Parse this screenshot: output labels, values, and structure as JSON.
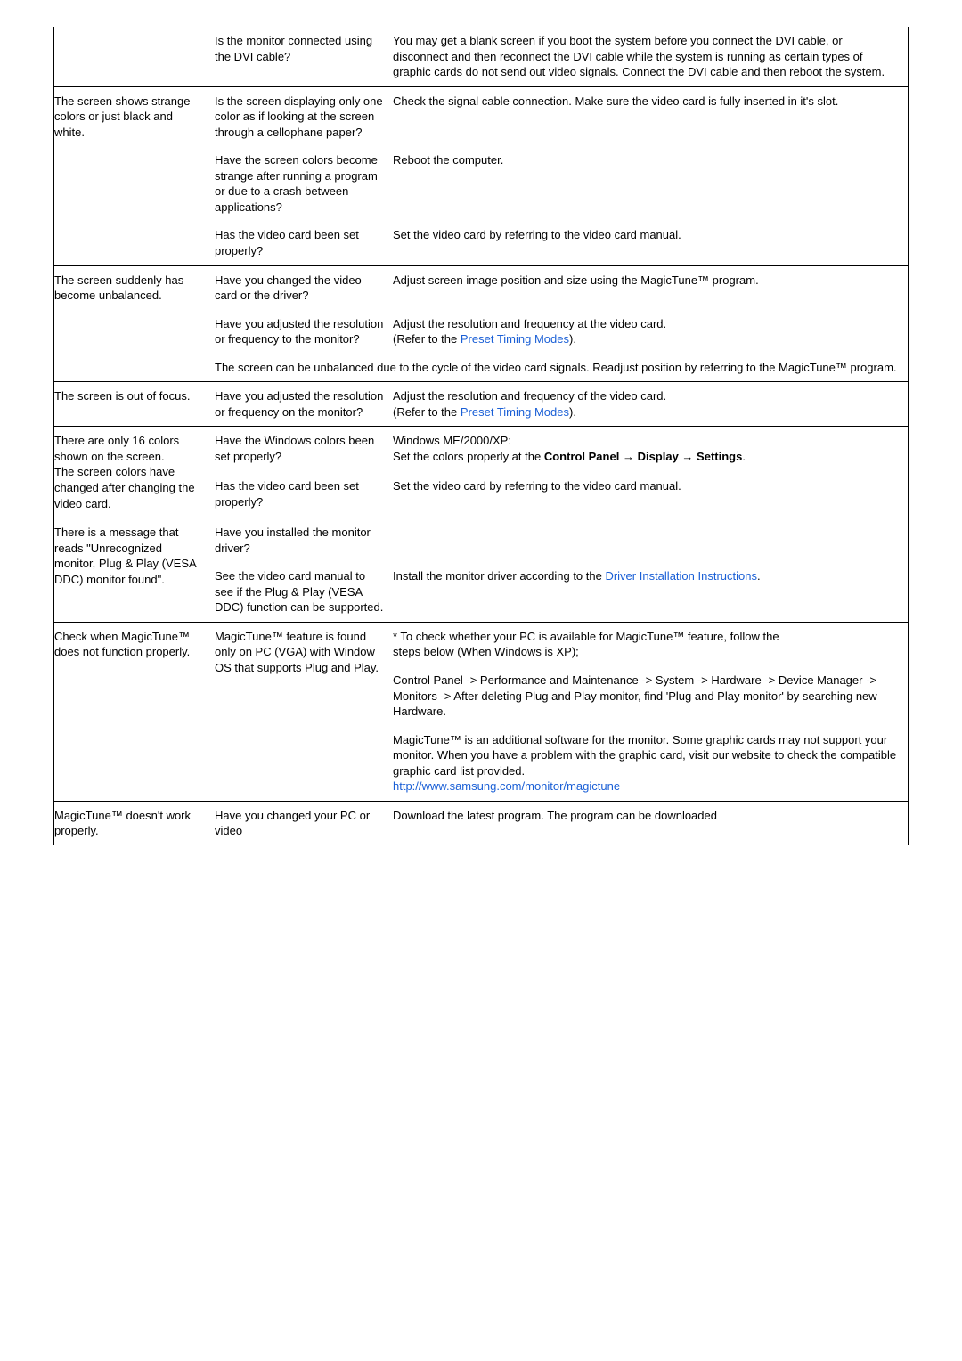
{
  "rows": [
    {
      "c1": "",
      "c2": "Is the monitor connected using the DVI cable?",
      "c3_parts": [
        {
          "text": "You may get a blank screen if you boot the system before you connect the DVI cable, or disconnect and then reconnect the DVI cable while the system is running as certain types of graphic cards do not send out video signals. Connect the DVI cable and then reboot the system."
        }
      ]
    },
    {
      "c1": "The screen shows strange colors or just black and white.",
      "c2": "Is the screen displaying only one color as if looking at the screen through a cellophane paper?",
      "c3_parts": [
        {
          "text": "Check the signal cable connection. Make sure the video card is fully inserted in it's slot."
        }
      ]
    },
    {
      "c1": "",
      "c2": "Have the screen colors become strange after running a program or due to a crash between applications?",
      "c3_parts": [
        {
          "text": "Reboot the computer."
        }
      ]
    },
    {
      "c1": "",
      "c2": "Has the video card been set properly?",
      "c3_parts": [
        {
          "text": "Set the video card by referring to the video card manual."
        }
      ]
    },
    {
      "c1": "The screen suddenly has become unbalanced.",
      "c2": "Have you changed the video card or the driver?",
      "c3_parts": [
        {
          "text": "Adjust screen image position and size using the MagicTune™ program."
        }
      ]
    },
    {
      "c1": "",
      "c2": "Have you adjusted the resolution or frequency to the monitor?",
      "c3_parts": [
        {
          "text": "Adjust the resolution and frequency at the video card.\n(Refer to the "
        },
        {
          "text": "Preset Timing Modes",
          "link": true
        },
        {
          "text": ")."
        }
      ]
    },
    {
      "c1": "",
      "span23_parts": [
        {
          "text": "The screen can be unbalanced due to the cycle of the video card signals. Readjust position by referring to the MagicTune™ program."
        }
      ]
    },
    {
      "c1": "The screen is out of focus.",
      "c2": "Have you adjusted the resolution or frequency on the monitor?",
      "c3_parts": [
        {
          "text": "Adjust the resolution and frequency of the video card.\n(Refer to the "
        },
        {
          "text": "Preset Timing Modes",
          "link": true
        },
        {
          "text": ")."
        }
      ]
    },
    {
      "c1": "There are only 16 colors shown on the screen.\nThe screen colors have changed after changing the video card.",
      "c1_rowspan": 2,
      "c2": "Have the Windows colors been set properly?",
      "c3_parts": [
        {
          "text": "Windows ME/2000/XP:\nSet the colors properly at the "
        },
        {
          "text": "Control Panel",
          "bold": true
        },
        {
          "text": " → "
        },
        {
          "text": "Display",
          "bold": true
        },
        {
          "text": " → "
        },
        {
          "text": "Settings",
          "bold": true
        },
        {
          "text": "."
        }
      ]
    },
    {
      "skip_c1": true,
      "c2": "Has the video card been set properly?",
      "c3_parts": [
        {
          "text": "Set the video card by referring to the video card manual."
        }
      ]
    },
    {
      "c1": "There is a message that reads \"Unrecognized monitor, Plug & Play (VESA DDC) monitor found\".",
      "c1_rowspan": 2,
      "c2": "Have you installed the monitor driver?",
      "c3_parts": []
    },
    {
      "skip_c1": true,
      "c2": "See the video card manual to see if the Plug & Play (VESA DDC) function can be supported.",
      "c3_parts": [
        {
          "text": "Install the monitor driver according to the "
        },
        {
          "text": "Driver Installation Instructions",
          "link": true
        },
        {
          "text": "."
        }
      ]
    },
    {
      "c1": "Check when MagicTune™ does not function properly.",
      "c1_rowspan": 3,
      "c2": "MagicTune™ feature is found only on PC (VGA) with Window OS that supports Plug and Play.",
      "c2_rowspan": 3,
      "c3_parts": [
        {
          "text": "* To check whether your PC is available for MagicTune™ feature, follow the\n   steps below (When Windows is XP);"
        }
      ]
    },
    {
      "skip_c1": true,
      "skip_c2": true,
      "c3_parts": [
        {
          "text": "Control Panel -> Performance and Maintenance -> System -> Hardware -> Device Manager -> Monitors -> After deleting Plug and Play monitor, find 'Plug and Play monitor' by searching new Hardware."
        }
      ]
    },
    {
      "skip_c1": true,
      "skip_c2": true,
      "c3_parts": [
        {
          "text": "MagicTune™ is an additional software for the monitor. Some graphic cards may not support your monitor. When you have a problem with the graphic card, visit our website to check the compatible graphic card list provided.\n"
        },
        {
          "text": "http://www.samsung.com/monitor/magictune",
          "link": true
        }
      ]
    },
    {
      "c1": "MagicTune™ doesn't work properly.",
      "c2": "Have you changed your PC or video",
      "c3_parts": [
        {
          "text": "Download the latest program. The program can be downloaded"
        }
      ]
    }
  ],
  "divider_before": [
    1,
    4,
    7,
    8,
    10,
    12,
    15
  ]
}
